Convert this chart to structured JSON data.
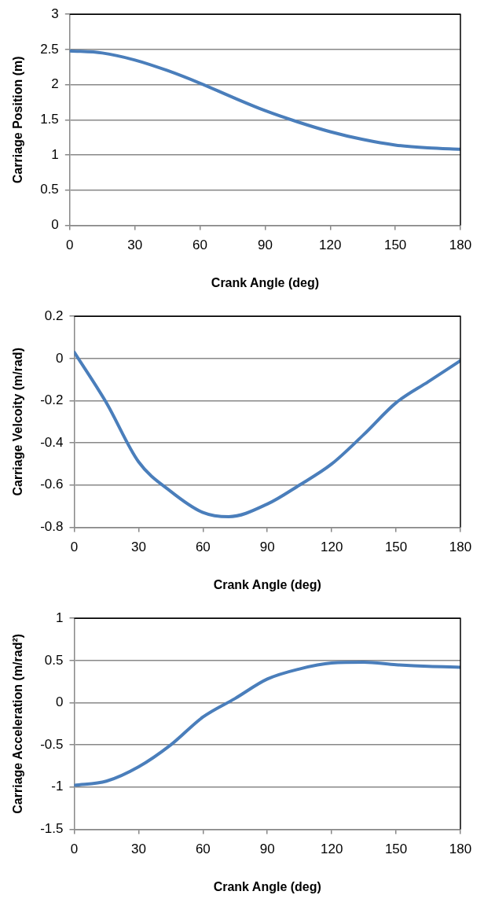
{
  "chart_data": [
    {
      "type": "line",
      "xlabel": "Crank Angle (deg)",
      "ylabel": "Carriage Position (m)",
      "x": [
        0,
        15,
        30,
        45,
        60,
        75,
        90,
        105,
        120,
        135,
        150,
        165,
        180
      ],
      "series": [
        {
          "color": "#4a7ebb",
          "values": [
            2.48,
            2.45,
            2.35,
            2.2,
            2.02,
            1.82,
            1.63,
            1.47,
            1.33,
            1.22,
            1.14,
            1.1,
            1.08
          ]
        }
      ],
      "xlim": [
        0,
        180
      ],
      "xticks": [
        0,
        30,
        60,
        90,
        120,
        150,
        180
      ],
      "ylim": [
        0,
        3
      ],
      "yticks": [
        0,
        0.5,
        1,
        1.5,
        2,
        2.5,
        3
      ],
      "grid": "y",
      "marker": "none",
      "line_style": "solid"
    },
    {
      "type": "line",
      "xlabel": "Crank Angle (deg)",
      "ylabel": "Carriage Velcoity (m/rad)",
      "x": [
        0,
        15,
        30,
        45,
        60,
        72,
        90,
        105,
        120,
        135,
        150,
        165,
        180
      ],
      "series": [
        {
          "color": "#4a7ebb",
          "values": [
            0.03,
            -0.21,
            -0.49,
            -0.63,
            -0.73,
            -0.75,
            -0.69,
            -0.6,
            -0.5,
            -0.36,
            -0.21,
            -0.11,
            -0.01
          ]
        }
      ],
      "xlim": [
        0,
        180
      ],
      "xticks": [
        0,
        30,
        60,
        90,
        120,
        150,
        180
      ],
      "ylim": [
        -0.8,
        0.2
      ],
      "yticks": [
        -0.8,
        -0.6,
        -0.4,
        -0.2,
        0,
        0.2
      ],
      "grid": "y",
      "marker": "none",
      "line_style": "solid"
    },
    {
      "type": "line",
      "xlabel": "Crank Angle (deg)",
      "ylabel": "Carriage Acceleration (m/rad²)",
      "x": [
        0,
        15,
        30,
        45,
        60,
        75,
        90,
        105,
        120,
        135,
        150,
        165,
        180
      ],
      "series": [
        {
          "color": "#4a7ebb",
          "values": [
            -0.98,
            -0.93,
            -0.76,
            -0.5,
            -0.17,
            0.05,
            0.28,
            0.4,
            0.47,
            0.48,
            0.45,
            0.43,
            0.42
          ]
        }
      ],
      "xlim": [
        0,
        180
      ],
      "xticks": [
        0,
        30,
        60,
        90,
        120,
        150,
        180
      ],
      "ylim": [
        -1.5,
        1
      ],
      "yticks": [
        -1.5,
        -1,
        -0.5,
        0,
        0.5,
        1
      ],
      "grid": "y",
      "marker": "none",
      "line_style": "solid"
    }
  ]
}
